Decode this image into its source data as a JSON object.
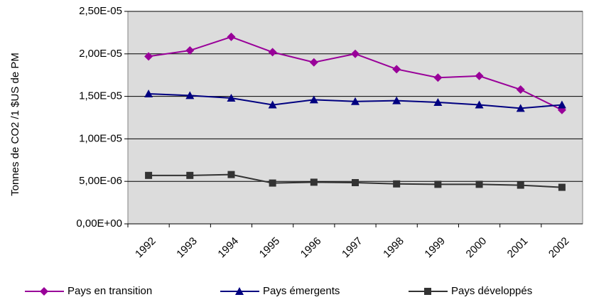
{
  "chart_data": {
    "type": "line",
    "y_label": "Tonnes de CO2 /1 $US de PM",
    "categories": [
      "1992",
      "1993",
      "1994",
      "1995",
      "1996",
      "1997",
      "1998",
      "1999",
      "2000",
      "2001",
      "2002"
    ],
    "series": [
      {
        "name": "Pays en transition",
        "color": "#990099",
        "marker": "diamond",
        "values": [
          1.97e-05,
          2.04e-05,
          2.2e-05,
          2.02e-05,
          1.9e-05,
          2e-05,
          1.82e-05,
          1.72e-05,
          1.74e-05,
          1.58e-05,
          1.34e-05
        ]
      },
      {
        "name": "Pays émergents",
        "color": "#000080",
        "marker": "triangle",
        "values": [
          1.53e-05,
          1.51e-05,
          1.48e-05,
          1.4e-05,
          1.46e-05,
          1.44e-05,
          1.45e-05,
          1.43e-05,
          1.4e-05,
          1.36e-05,
          1.4e-05
        ]
      },
      {
        "name": "Pays développés",
        "color": "#333333",
        "marker": "square",
        "values": [
          5.7e-06,
          5.7e-06,
          5.8e-06,
          4.8e-06,
          4.9e-06,
          4.85e-06,
          4.7e-06,
          4.65e-06,
          4.65e-06,
          4.55e-06,
          4.3e-06
        ]
      }
    ],
    "ylim": [
      0,
      2.5e-05
    ],
    "yticks": [
      {
        "value": 0,
        "label": "0,00E+00"
      },
      {
        "value": 5e-06,
        "label": "5,00E-06"
      },
      {
        "value": 1e-05,
        "label": "1,00E-05"
      },
      {
        "value": 1.5e-05,
        "label": "1,50E-05"
      },
      {
        "value": 2e-05,
        "label": "2,00E-05"
      },
      {
        "value": 2.5e-05,
        "label": "2,50E-05"
      }
    ],
    "grid": true,
    "legend": "bottom"
  }
}
